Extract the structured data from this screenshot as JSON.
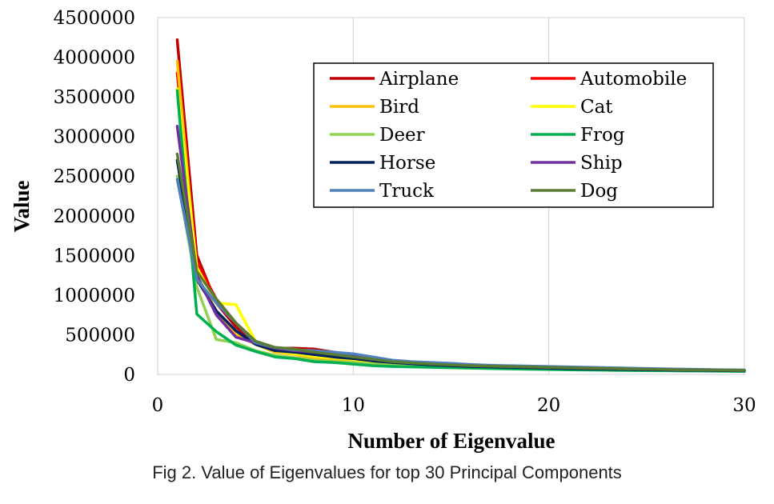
{
  "caption": "Fig 2. Value of Eigenvalues for top 30 Principal Components",
  "chart_data": {
    "type": "line",
    "title": "",
    "xlabel": "Number of Eigenvalue",
    "ylabel": "Value",
    "xlim": [
      0,
      30
    ],
    "ylim": [
      0,
      4500000
    ],
    "x_ticks": [
      "0",
      "10",
      "20",
      "30"
    ],
    "y_ticks": [
      "0",
      "500000",
      "1000000",
      "1500000",
      "2000000",
      "2500000",
      "3000000",
      "3500000",
      "4000000",
      "4500000"
    ],
    "grid": "vertical",
    "legend_position": "top-right",
    "x": [
      1,
      2,
      3,
      4,
      5,
      6,
      7,
      8,
      9,
      10,
      11,
      12,
      13,
      14,
      15,
      16,
      17,
      18,
      19,
      20,
      21,
      22,
      23,
      24,
      25,
      26,
      27,
      28,
      29,
      30
    ],
    "series": [
      {
        "name": "Airplane",
        "color": "#C00000",
        "values": [
          4220000,
          1500000,
          900000,
          600000,
          400000,
          330000,
          330000,
          320000,
          280000,
          250000,
          200000,
          170000,
          150000,
          130000,
          120000,
          110000,
          100000,
          95000,
          90000,
          85000,
          80000,
          75000,
          70000,
          65000,
          62000,
          60000,
          58000,
          55000,
          52000,
          50000
        ]
      },
      {
        "name": "Automobile",
        "color": "#FF0000",
        "values": [
          3800000,
          1400000,
          950000,
          650000,
          420000,
          300000,
          260000,
          240000,
          240000,
          230000,
          200000,
          160000,
          140000,
          130000,
          120000,
          115000,
          105000,
          100000,
          95000,
          90000,
          85000,
          80000,
          75000,
          70000,
          65000,
          62000,
          58000,
          55000,
          52000,
          50000
        ]
      },
      {
        "name": "Bird",
        "color": "#FFC000",
        "values": [
          3950000,
          1250000,
          800000,
          500000,
          380000,
          280000,
          250000,
          200000,
          180000,
          170000,
          150000,
          130000,
          120000,
          110000,
          100000,
          95000,
          90000,
          85000,
          80000,
          75000,
          70000,
          66000,
          62000,
          58000,
          55000,
          52000,
          50000,
          48000,
          46000,
          44000
        ]
      },
      {
        "name": "Cat",
        "color": "#FFFF00",
        "values": [
          3600000,
          1350000,
          900000,
          880000,
          420000,
          300000,
          260000,
          230000,
          210000,
          190000,
          160000,
          140000,
          130000,
          120000,
          110000,
          100000,
          95000,
          90000,
          85000,
          80000,
          75000,
          70000,
          65000,
          62000,
          58000,
          55000,
          52000,
          50000,
          48000,
          46000
        ]
      },
      {
        "name": "Deer",
        "color": "#92D050",
        "values": [
          2500000,
          1100000,
          440000,
          400000,
          300000,
          240000,
          210000,
          180000,
          160000,
          150000,
          130000,
          115000,
          110000,
          100000,
          95000,
          90000,
          85000,
          80000,
          75000,
          70000,
          66000,
          62000,
          58000,
          55000,
          52000,
          50000,
          48000,
          46000,
          44000,
          42000
        ]
      },
      {
        "name": "Frog",
        "color": "#00B050",
        "values": [
          3580000,
          760000,
          540000,
          370000,
          290000,
          220000,
          200000,
          160000,
          150000,
          130000,
          110000,
          100000,
          95000,
          90000,
          85000,
          80000,
          75000,
          70000,
          66000,
          62000,
          58000,
          55000,
          52000,
          50000,
          48000,
          46000,
          44000,
          42000,
          40000,
          38000
        ]
      },
      {
        "name": "Horse",
        "color": "#002060",
        "values": [
          2700000,
          1200000,
          800000,
          550000,
          380000,
          300000,
          280000,
          250000,
          220000,
          200000,
          170000,
          150000,
          135000,
          120000,
          110000,
          100000,
          95000,
          90000,
          85000,
          80000,
          75000,
          70000,
          66000,
          62000,
          58000,
          55000,
          52000,
          50000,
          48000,
          46000
        ]
      },
      {
        "name": "Ship",
        "color": "#7030A0",
        "values": [
          3130000,
          1250000,
          750000,
          470000,
          400000,
          330000,
          300000,
          280000,
          260000,
          240000,
          200000,
          170000,
          150000,
          135000,
          125000,
          115000,
          105000,
          100000,
          95000,
          90000,
          85000,
          80000,
          75000,
          70000,
          66000,
          62000,
          58000,
          55000,
          52000,
          50000
        ]
      },
      {
        "name": "Truck",
        "color": "#4F81BD",
        "values": [
          2460000,
          1200000,
          900000,
          650000,
          400000,
          340000,
          310000,
          300000,
          280000,
          260000,
          220000,
          180000,
          160000,
          150000,
          140000,
          125000,
          115000,
          110000,
          105000,
          100000,
          95000,
          90000,
          85000,
          80000,
          75000,
          70000,
          66000,
          62000,
          58000,
          55000
        ]
      },
      {
        "name": "Dog",
        "color": "#5A7B34",
        "values": [
          2780000,
          1300000,
          950000,
          650000,
          420000,
          340000,
          320000,
          280000,
          250000,
          220000,
          190000,
          160000,
          145000,
          130000,
          120000,
          110000,
          105000,
          100000,
          95000,
          90000,
          85000,
          80000,
          75000,
          70000,
          66000,
          62000,
          58000,
          55000,
          52000,
          50000
        ]
      }
    ]
  }
}
